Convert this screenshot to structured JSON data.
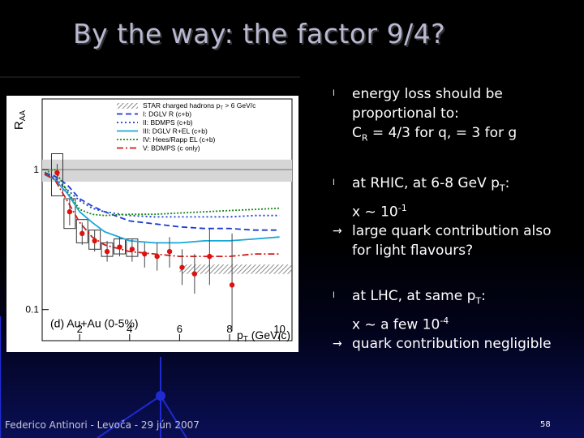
{
  "slide": {
    "title": "By the way: the factor 9/4?",
    "footer": "Federico Antinori - Levoča - 29 jún 2007",
    "page_number": "58",
    "bullets": [
      {
        "marker": "l",
        "lines": [
          "energy loss should be",
          "proportional to:"
        ],
        "formula": {
          "pre": "C",
          "sub": "R",
          "post": " = 4/3 for q, = 3 for g"
        }
      },
      {
        "marker": "l",
        "text_pre": "at RHIC, at 6-8 GeV p",
        "text_sub": "T",
        "text_post": ":",
        "x_pre": "x ~ 10",
        "x_sup": "-1"
      },
      {
        "marker": "→",
        "lines": [
          "large quark contribution also",
          "for light flavours?"
        ]
      },
      {
        "marker": "l",
        "text_pre": "at LHC, at same p",
        "text_sub": "T",
        "text_post": ":",
        "x_pre": "x ~ a few 10",
        "x_sup": "-4"
      },
      {
        "marker": "→",
        "lines": [
          "quark contribution negligible"
        ]
      }
    ]
  },
  "chart_data": {
    "type": "line",
    "ylabel_main": "R",
    "ylabel_sub": "AA",
    "xlabel_main": "p",
    "xlabel_sub": "T",
    "xlabel_unit": " (GeV/c)",
    "panel_label": "(d) Au+Au (0-5%)",
    "xlim": [
      0.5,
      10.5
    ],
    "ylim": [
      0.06,
      3.2
    ],
    "ylog": true,
    "xticks": [
      2,
      4,
      6,
      8,
      10
    ],
    "yticks": [
      {
        "v": 1,
        "label": "1"
      },
      {
        "v": 0.1,
        "label": "0.1"
      }
    ],
    "legend_position": "top-right",
    "reference_band": {
      "name": "STAR charged hadrons p",
      "name_sub": "T",
      "name_post": " > 6 GeV/c",
      "ymin": 0.18,
      "ymax": 0.21,
      "xmin": 6.0,
      "xmax": 10.5
    },
    "series": [
      {
        "name": "I:   DGLV R (c+b)",
        "color": "#1a3bd1",
        "dash": "7,4",
        "x": [
          0.6,
          1,
          1.5,
          2,
          2.5,
          3,
          4,
          5,
          6,
          7,
          8,
          9,
          10
        ],
        "y": [
          0.95,
          0.9,
          0.78,
          0.62,
          0.55,
          0.5,
          0.43,
          0.41,
          0.39,
          0.38,
          0.38,
          0.37,
          0.37
        ]
      },
      {
        "name": "II:  BDMPS (c+b)",
        "color": "#1a3bd1",
        "dash": "2,3",
        "x": [
          0.6,
          1,
          1.5,
          2,
          2.5,
          3,
          4,
          5,
          6,
          7,
          8,
          9,
          10
        ],
        "y": [
          0.94,
          0.87,
          0.72,
          0.6,
          0.53,
          0.5,
          0.47,
          0.46,
          0.46,
          0.46,
          0.46,
          0.47,
          0.47
        ]
      },
      {
        "name": "III: DGLV R+EL (c+b)",
        "color": "#18a8d8",
        "dash": "",
        "x": [
          0.6,
          1,
          1.5,
          2,
          2.5,
          3,
          4,
          5,
          6,
          7,
          8,
          9,
          10
        ],
        "y": [
          0.92,
          0.85,
          0.68,
          0.5,
          0.42,
          0.36,
          0.31,
          0.3,
          0.3,
          0.31,
          0.31,
          0.32,
          0.33
        ]
      },
      {
        "name": "IV: Hees/Rapp EL (c+b)",
        "color": "#1a8a1a",
        "dash": "2,2",
        "x": [
          0.6,
          1,
          1.5,
          2,
          2.5,
          3,
          4,
          5,
          6,
          7,
          8,
          9,
          10
        ],
        "y": [
          0.95,
          1.0,
          0.7,
          0.52,
          0.48,
          0.47,
          0.48,
          0.48,
          0.49,
          0.5,
          0.51,
          0.52,
          0.53
        ]
      },
      {
        "name": "V:  BDMPS (c only)",
        "color": "#d01a1a",
        "dash": "8,3,2,3",
        "x": [
          0.6,
          1,
          1.5,
          2,
          2.5,
          3,
          4,
          5,
          6,
          7,
          8,
          9,
          10
        ],
        "y": [
          0.93,
          0.85,
          0.6,
          0.42,
          0.33,
          0.29,
          0.26,
          0.25,
          0.24,
          0.24,
          0.24,
          0.25,
          0.25
        ]
      }
    ],
    "data_points": {
      "name": "STAR data",
      "x": [
        1.1,
        1.6,
        2.1,
        2.6,
        3.1,
        3.6,
        4.1,
        4.6,
        5.1,
        5.6,
        6.1,
        6.6,
        7.2,
        8.1
      ],
      "y": [
        0.95,
        0.5,
        0.35,
        0.31,
        0.26,
        0.28,
        0.27,
        0.25,
        0.24,
        0.26,
        0.2,
        0.18,
        0.24,
        0.15
      ],
      "err_lo": [
        0.82,
        0.4,
        0.29,
        0.26,
        0.22,
        0.24,
        0.22,
        0.2,
        0.19,
        0.2,
        0.15,
        0.13,
        0.15,
        0.07
      ],
      "err_hi": [
        1.1,
        0.62,
        0.42,
        0.37,
        0.31,
        0.33,
        0.32,
        0.3,
        0.3,
        0.33,
        0.27,
        0.25,
        0.38,
        0.35
      ]
    },
    "phenix_boxes": {
      "x": [
        1.1,
        1.6,
        2.1,
        2.6,
        3.1,
        3.6,
        4.1
      ],
      "lo": [
        0.65,
        0.38,
        0.3,
        0.27,
        0.24,
        0.25,
        0.24
      ],
      "hi": [
        1.3,
        0.62,
        0.44,
        0.37,
        0.3,
        0.32,
        0.32
      ]
    }
  }
}
